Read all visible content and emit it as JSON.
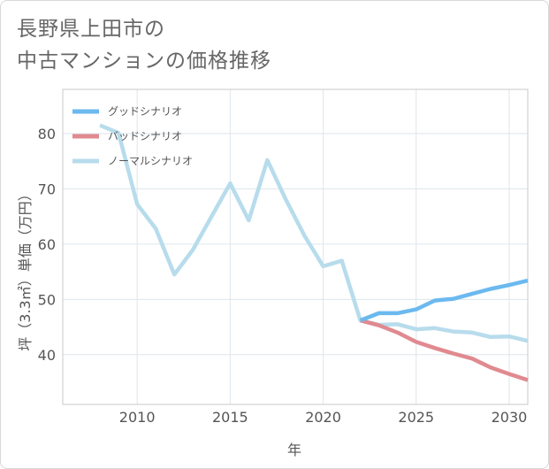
{
  "chart_data": {
    "type": "line",
    "title_lines": [
      "長野県上田市の",
      "中古マンションの価格推移"
    ],
    "xlabel": "年",
    "ylabel": "坪（3.3㎡）単価（万円）",
    "xlim": [
      2006,
      2031
    ],
    "ylim": [
      31,
      88
    ],
    "x_ticks": [
      2010,
      2015,
      2020,
      2025,
      2030
    ],
    "y_ticks": [
      40,
      50,
      60,
      70,
      80
    ],
    "grid": true,
    "legend_position": "top-left",
    "series": [
      {
        "name": "グッドシナリオ",
        "color": "#6bb9ef",
        "points": [
          [
            2022,
            46.2
          ],
          [
            2023,
            47.5
          ],
          [
            2024,
            47.5
          ],
          [
            2025,
            48.2
          ],
          [
            2026,
            49.8
          ],
          [
            2027,
            50.1
          ],
          [
            2028,
            51.0
          ],
          [
            2029,
            51.9
          ],
          [
            2030,
            52.6
          ],
          [
            2031,
            53.4
          ]
        ]
      },
      {
        "name": "バッドシナリオ",
        "color": "#e08a90",
        "points": [
          [
            2022,
            46.2
          ],
          [
            2023,
            45.3
          ],
          [
            2024,
            44.0
          ],
          [
            2025,
            42.3
          ],
          [
            2026,
            41.2
          ],
          [
            2027,
            40.2
          ],
          [
            2028,
            39.3
          ],
          [
            2029,
            37.7
          ],
          [
            2030,
            36.5
          ],
          [
            2031,
            35.4
          ]
        ]
      },
      {
        "name": "ノーマルシナリオ",
        "color": "#b7dcec",
        "points": [
          [
            2008,
            81.5
          ],
          [
            2009,
            80.1
          ],
          [
            2010,
            67.2
          ],
          [
            2011,
            62.8
          ],
          [
            2012,
            54.5
          ],
          [
            2013,
            59.0
          ],
          [
            2014,
            65.0
          ],
          [
            2015,
            71.0
          ],
          [
            2016,
            64.3
          ],
          [
            2017,
            75.2
          ],
          [
            2018,
            68.0
          ],
          [
            2019,
            61.5
          ],
          [
            2020,
            56.0
          ],
          [
            2021,
            57.0
          ],
          [
            2022,
            46.2
          ],
          [
            2023,
            45.4
          ],
          [
            2024,
            45.5
          ],
          [
            2025,
            44.6
          ],
          [
            2026,
            44.8
          ],
          [
            2027,
            44.2
          ],
          [
            2028,
            44.0
          ],
          [
            2029,
            43.2
          ],
          [
            2030,
            43.3
          ],
          [
            2031,
            42.5
          ]
        ]
      }
    ]
  }
}
